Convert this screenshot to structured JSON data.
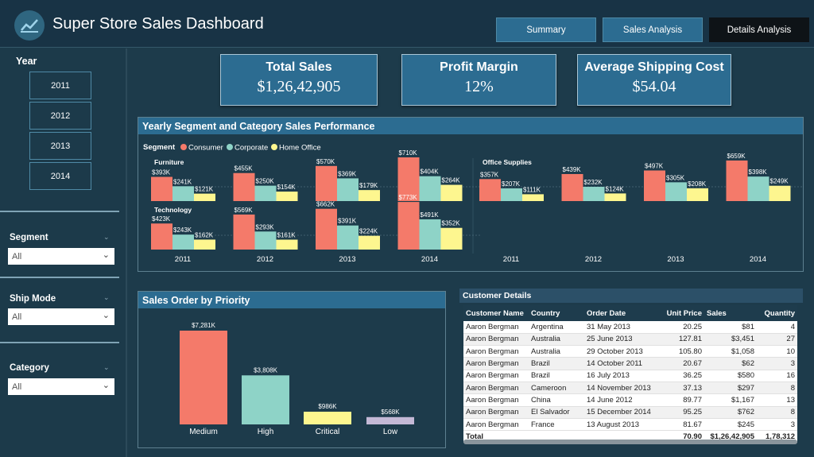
{
  "header": {
    "title": "Super Store Sales Dashboard",
    "tabs": [
      {
        "label": "Summary",
        "active": false
      },
      {
        "label": "Sales Analysis",
        "active": false
      },
      {
        "label": "Details Analysis",
        "active": true
      }
    ]
  },
  "sidebar": {
    "year_label": "Year",
    "years": [
      "2011",
      "2012",
      "2013",
      "2014"
    ],
    "filters": [
      {
        "label": "Segment",
        "value": "All"
      },
      {
        "label": "Ship Mode",
        "value": "All"
      },
      {
        "label": "Category",
        "value": "All"
      }
    ]
  },
  "kpis": [
    {
      "title": "Total Sales",
      "value": "$1,26,42,905"
    },
    {
      "title": "Profit Margin",
      "value": "12%"
    },
    {
      "title": "Average Shipping Cost",
      "value": "$54.04"
    }
  ],
  "colors": {
    "consumer": "#f47a6a",
    "corporate": "#8ed3c7",
    "home_office": "#fdf68f",
    "priority_medium": "#f47a6a",
    "priority_high": "#8ed3c7",
    "priority_critical": "#fdf68f",
    "priority_low": "#c4b9d6"
  },
  "segment_panel": {
    "title": "Yearly Segment and Category Sales Performance",
    "legend_title": "Segment",
    "legend": [
      "Consumer",
      "Corporate",
      "Home Office"
    ]
  },
  "priority_panel": {
    "title": "Sales Order by Priority"
  },
  "chart_data": [
    {
      "type": "bar",
      "title": "Yearly Segment and Category Sales Performance",
      "categories": [
        "2011",
        "2012",
        "2013",
        "2014"
      ],
      "facets": [
        {
          "name": "Furniture",
          "series": [
            {
              "name": "Consumer",
              "values": [
                393,
                455,
                570,
                710
              ],
              "labels": [
                "$393K",
                "$455K",
                "$570K",
                "$710K"
              ]
            },
            {
              "name": "Corporate",
              "values": [
                241,
                250,
                369,
                404
              ],
              "labels": [
                "$241K",
                "$250K",
                "$369K",
                "$404K"
              ]
            },
            {
              "name": "Home Office",
              "values": [
                121,
                154,
                179,
                264
              ],
              "labels": [
                "$121K",
                "$154K",
                "$179K",
                "$264K"
              ]
            }
          ]
        },
        {
          "name": "Office Supplies",
          "series": [
            {
              "name": "Consumer",
              "values": [
                357,
                439,
                497,
                659
              ],
              "labels": [
                "$357K",
                "$439K",
                "$497K",
                "$659K"
              ]
            },
            {
              "name": "Corporate",
              "values": [
                207,
                232,
                305,
                398
              ],
              "labels": [
                "$207K",
                "$232K",
                "$305K",
                "$398K"
              ]
            },
            {
              "name": "Home Office",
              "values": [
                111,
                124,
                208,
                249
              ],
              "labels": [
                "$111K",
                "$124K",
                "$208K",
                "$249K"
              ]
            }
          ]
        },
        {
          "name": "Technology",
          "series": [
            {
              "name": "Consumer",
              "values": [
                423,
                569,
                662,
                773
              ],
              "labels": [
                "$423K",
                "$569K",
                "$662K",
                "$773K"
              ]
            },
            {
              "name": "Corporate",
              "values": [
                243,
                293,
                391,
                491
              ],
              "labels": [
                "$243K",
                "$293K",
                "$391K",
                "$491K"
              ]
            },
            {
              "name": "Home Office",
              "values": [
                162,
                161,
                224,
                352
              ],
              "labels": [
                "$162K",
                "$161K",
                "$224K",
                "$352K"
              ]
            }
          ]
        }
      ],
      "legend_position": "top-left"
    },
    {
      "type": "bar",
      "title": "Sales Order by Priority",
      "categories": [
        "Medium",
        "High",
        "Critical",
        "Low"
      ],
      "values": [
        7281,
        3808,
        986,
        568
      ],
      "labels": [
        "$7,281K",
        "$3,808K",
        "$986K",
        "$568K"
      ],
      "ylim": [
        0,
        7281
      ]
    }
  ],
  "customer_table": {
    "title": "Customer Details",
    "columns": [
      "Customer Name",
      "Country",
      "Order Date",
      "Unit Price",
      "Sales",
      "Quantity"
    ],
    "rows": [
      [
        "Aaron Bergman",
        "Argentina",
        "31 May 2013",
        "20.25",
        "$81",
        "4"
      ],
      [
        "Aaron Bergman",
        "Australia",
        "25 June 2013",
        "127.81",
        "$3,451",
        "27"
      ],
      [
        "Aaron Bergman",
        "Australia",
        "29 October 2013",
        "105.80",
        "$1,058",
        "10"
      ],
      [
        "Aaron Bergman",
        "Brazil",
        "14 October 2011",
        "20.67",
        "$62",
        "3"
      ],
      [
        "Aaron Bergman",
        "Brazil",
        "16 July 2013",
        "36.25",
        "$580",
        "16"
      ],
      [
        "Aaron Bergman",
        "Cameroon",
        "14 November 2013",
        "37.13",
        "$297",
        "8"
      ],
      [
        "Aaron Bergman",
        "China",
        "14 June 2012",
        "89.77",
        "$1,167",
        "13"
      ],
      [
        "Aaron Bergman",
        "El Salvador",
        "15 December 2014",
        "95.25",
        "$762",
        "8"
      ],
      [
        "Aaron Bergman",
        "France",
        "13 August 2013",
        "81.67",
        "$245",
        "3"
      ]
    ],
    "total": [
      "Total",
      "",
      "",
      "70.90",
      "$1,26,42,905",
      "1,78,312"
    ]
  }
}
